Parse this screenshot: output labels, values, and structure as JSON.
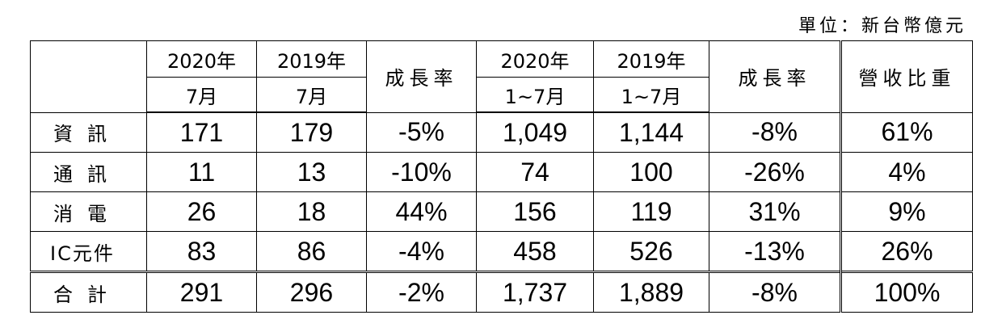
{
  "unit_label": "單位：新台幣億元",
  "header": {
    "col_2020_month": {
      "year": "2020年",
      "period": "7月"
    },
    "col_2019_month": {
      "year": "2019年",
      "period": "7月"
    },
    "growth_month": "成長率",
    "col_2020_ytd": {
      "year": "2020年",
      "period": "1~7月"
    },
    "col_2019_ytd": {
      "year": "2019年",
      "period": "1~7月"
    },
    "growth_ytd": "成長率",
    "revenue_share": "營收比重"
  },
  "rows": [
    {
      "label": "資訊",
      "m2020": "171",
      "m2019": "179",
      "m_growth": "-5%",
      "y2020": "1,049",
      "y2019": "1,144",
      "y_growth": "-8%",
      "share": "61%"
    },
    {
      "label": "通訊",
      "m2020": "11",
      "m2019": "13",
      "m_growth": "-10%",
      "y2020": "74",
      "y2019": "100",
      "y_growth": "-26%",
      "share": "4%"
    },
    {
      "label": "消電",
      "m2020": "26",
      "m2019": "18",
      "m_growth": "44%",
      "y2020": "156",
      "y2019": "119",
      "y_growth": "31%",
      "share": "9%"
    },
    {
      "label": "IC元件",
      "m2020": "83",
      "m2019": "86",
      "m_growth": "-4%",
      "y2020": "458",
      "y2019": "526",
      "y_growth": "-13%",
      "share": "26%"
    }
  ],
  "total": {
    "label": "合計",
    "m2020": "291",
    "m2019": "296",
    "m_growth": "-2%",
    "y2020": "1,737",
    "y2019": "1,889",
    "y_growth": "-8%",
    "share": "100%"
  }
}
